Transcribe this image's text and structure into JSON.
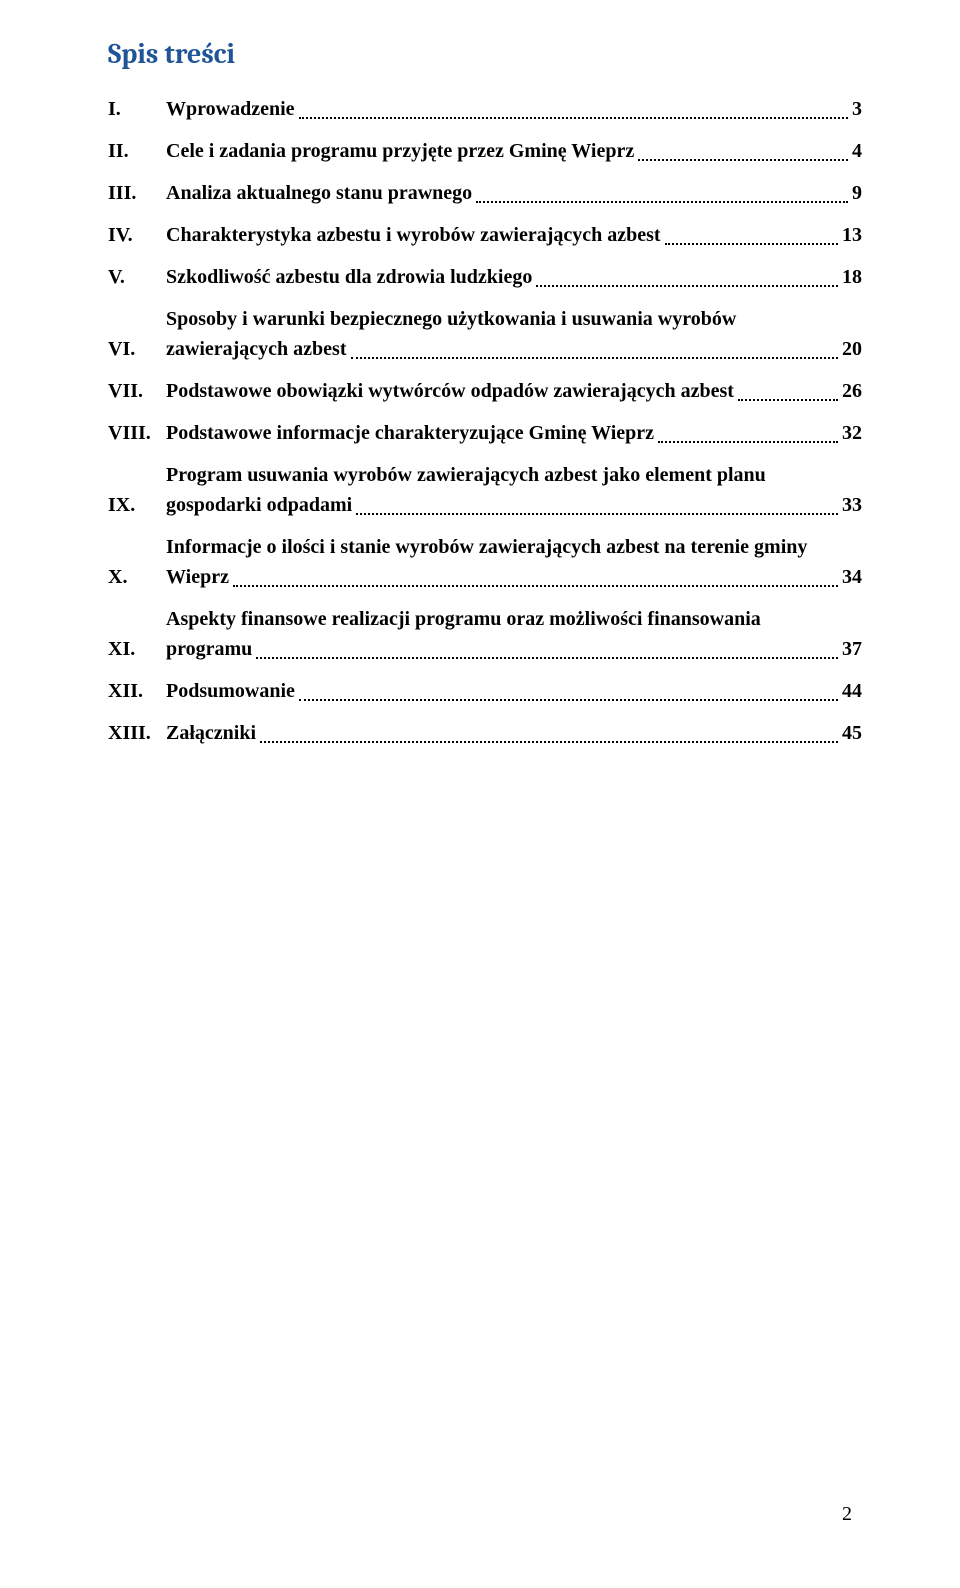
{
  "title": "Spis treści",
  "toc": [
    {
      "num": "I.",
      "label": "Wprowadzenie",
      "page": "3",
      "multiline": false
    },
    {
      "num": "II.",
      "label": "Cele i zadania programu przyjęte przez Gminę Wieprz",
      "page": "4",
      "multiline": false
    },
    {
      "num": "III.",
      "label": "Analiza aktualnego stanu prawnego",
      "page": "9",
      "multiline": false
    },
    {
      "num": "IV.",
      "label": "Charakterystyka azbestu i wyrobów zawierających azbest",
      "page": "13",
      "multiline": false
    },
    {
      "num": "V.",
      "label": "Szkodliwość azbestu dla zdrowia ludzkiego",
      "page": "18",
      "multiline": false
    },
    {
      "num": "VI.",
      "label_line1": "Sposoby i warunki bezpiecznego użytkowania i usuwania wyrobów",
      "label_line2": "zawierających azbest",
      "page": "20",
      "multiline": true
    },
    {
      "num": "VII.",
      "label": "Podstawowe obowiązki wytwórców odpadów zawierających azbest",
      "page": "26",
      "multiline": false
    },
    {
      "num": "VIII.",
      "label": "Podstawowe informacje charakteryzujące Gminę Wieprz",
      "page": "32",
      "multiline": false
    },
    {
      "num": "IX.",
      "label_line1": "Program usuwania wyrobów zawierających azbest jako element planu",
      "label_line2": "gospodarki odpadami",
      "page": "33",
      "multiline": true
    },
    {
      "num": "X.",
      "label_line1": "Informacje o ilości i stanie wyrobów zawierających azbest na terenie gminy",
      "label_line2": "Wieprz",
      "page": "34",
      "multiline": true
    },
    {
      "num": "XI.",
      "label_line1": "Aspekty finansowe realizacji programu oraz możliwości finansowania",
      "label_line2": "programu",
      "page": "37",
      "multiline": true
    },
    {
      "num": "XII.",
      "label": "Podsumowanie",
      "page": "44",
      "multiline": false
    },
    {
      "num": "XIII.",
      "label": "Załączniki",
      "page": "45",
      "multiline": false
    }
  ],
  "page_number": "2",
  "colors": {
    "title_color": "#1f5496",
    "text_color": "#000000",
    "background": "#ffffff"
  },
  "typography": {
    "title_fontsize": 28,
    "body_fontsize": 20,
    "title_font": "Cambria",
    "body_font": "Times New Roman",
    "bold_entries": true
  }
}
